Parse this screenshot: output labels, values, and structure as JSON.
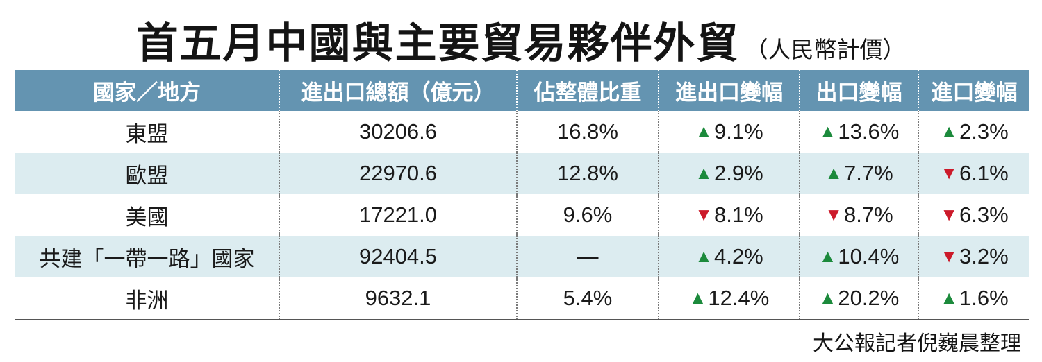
{
  "title": "首五月中國與主要貿易夥伴外貿",
  "subtitle": "（人民幣計價）",
  "colors": {
    "header_bg": "#6494b1",
    "row_alt": "#dcecf0",
    "up": "#1c8a3c",
    "down": "#cc1a2a"
  },
  "chart_data": {
    "type": "table",
    "columns": [
      "國家／地方",
      "進出口總額（億元）",
      "佔整體比重",
      "進出口變幅",
      "出口變幅",
      "進口變幅"
    ],
    "rows": [
      {
        "region": "東盟",
        "total": "30206.6",
        "share": "16.8%",
        "trade_change": {
          "dir": "up",
          "value": "9.1%"
        },
        "export_change": {
          "dir": "up",
          "value": "13.6%"
        },
        "import_change": {
          "dir": "up",
          "value": "2.3%"
        }
      },
      {
        "region": "歐盟",
        "total": "22970.6",
        "share": "12.8%",
        "trade_change": {
          "dir": "up",
          "value": "2.9%"
        },
        "export_change": {
          "dir": "up",
          "value": "7.7%"
        },
        "import_change": {
          "dir": "down",
          "value": "6.1%"
        }
      },
      {
        "region": "美國",
        "total": "17221.0",
        "share": "9.6%",
        "trade_change": {
          "dir": "down",
          "value": "8.1%"
        },
        "export_change": {
          "dir": "down",
          "value": "8.7%"
        },
        "import_change": {
          "dir": "down",
          "value": "6.3%"
        }
      },
      {
        "region": "共建「一帶一路」國家",
        "total": "92404.5",
        "share": "—",
        "trade_change": {
          "dir": "up",
          "value": "4.2%"
        },
        "export_change": {
          "dir": "up",
          "value": "10.4%"
        },
        "import_change": {
          "dir": "down",
          "value": "3.2%"
        }
      },
      {
        "region": "非洲",
        "total": "9632.1",
        "share": "5.4%",
        "trade_change": {
          "dir": "up",
          "value": "12.4%"
        },
        "export_change": {
          "dir": "up",
          "value": "20.2%"
        },
        "import_change": {
          "dir": "up",
          "value": "1.6%"
        }
      }
    ]
  },
  "credit": "大公報記者倪巍晨整理"
}
